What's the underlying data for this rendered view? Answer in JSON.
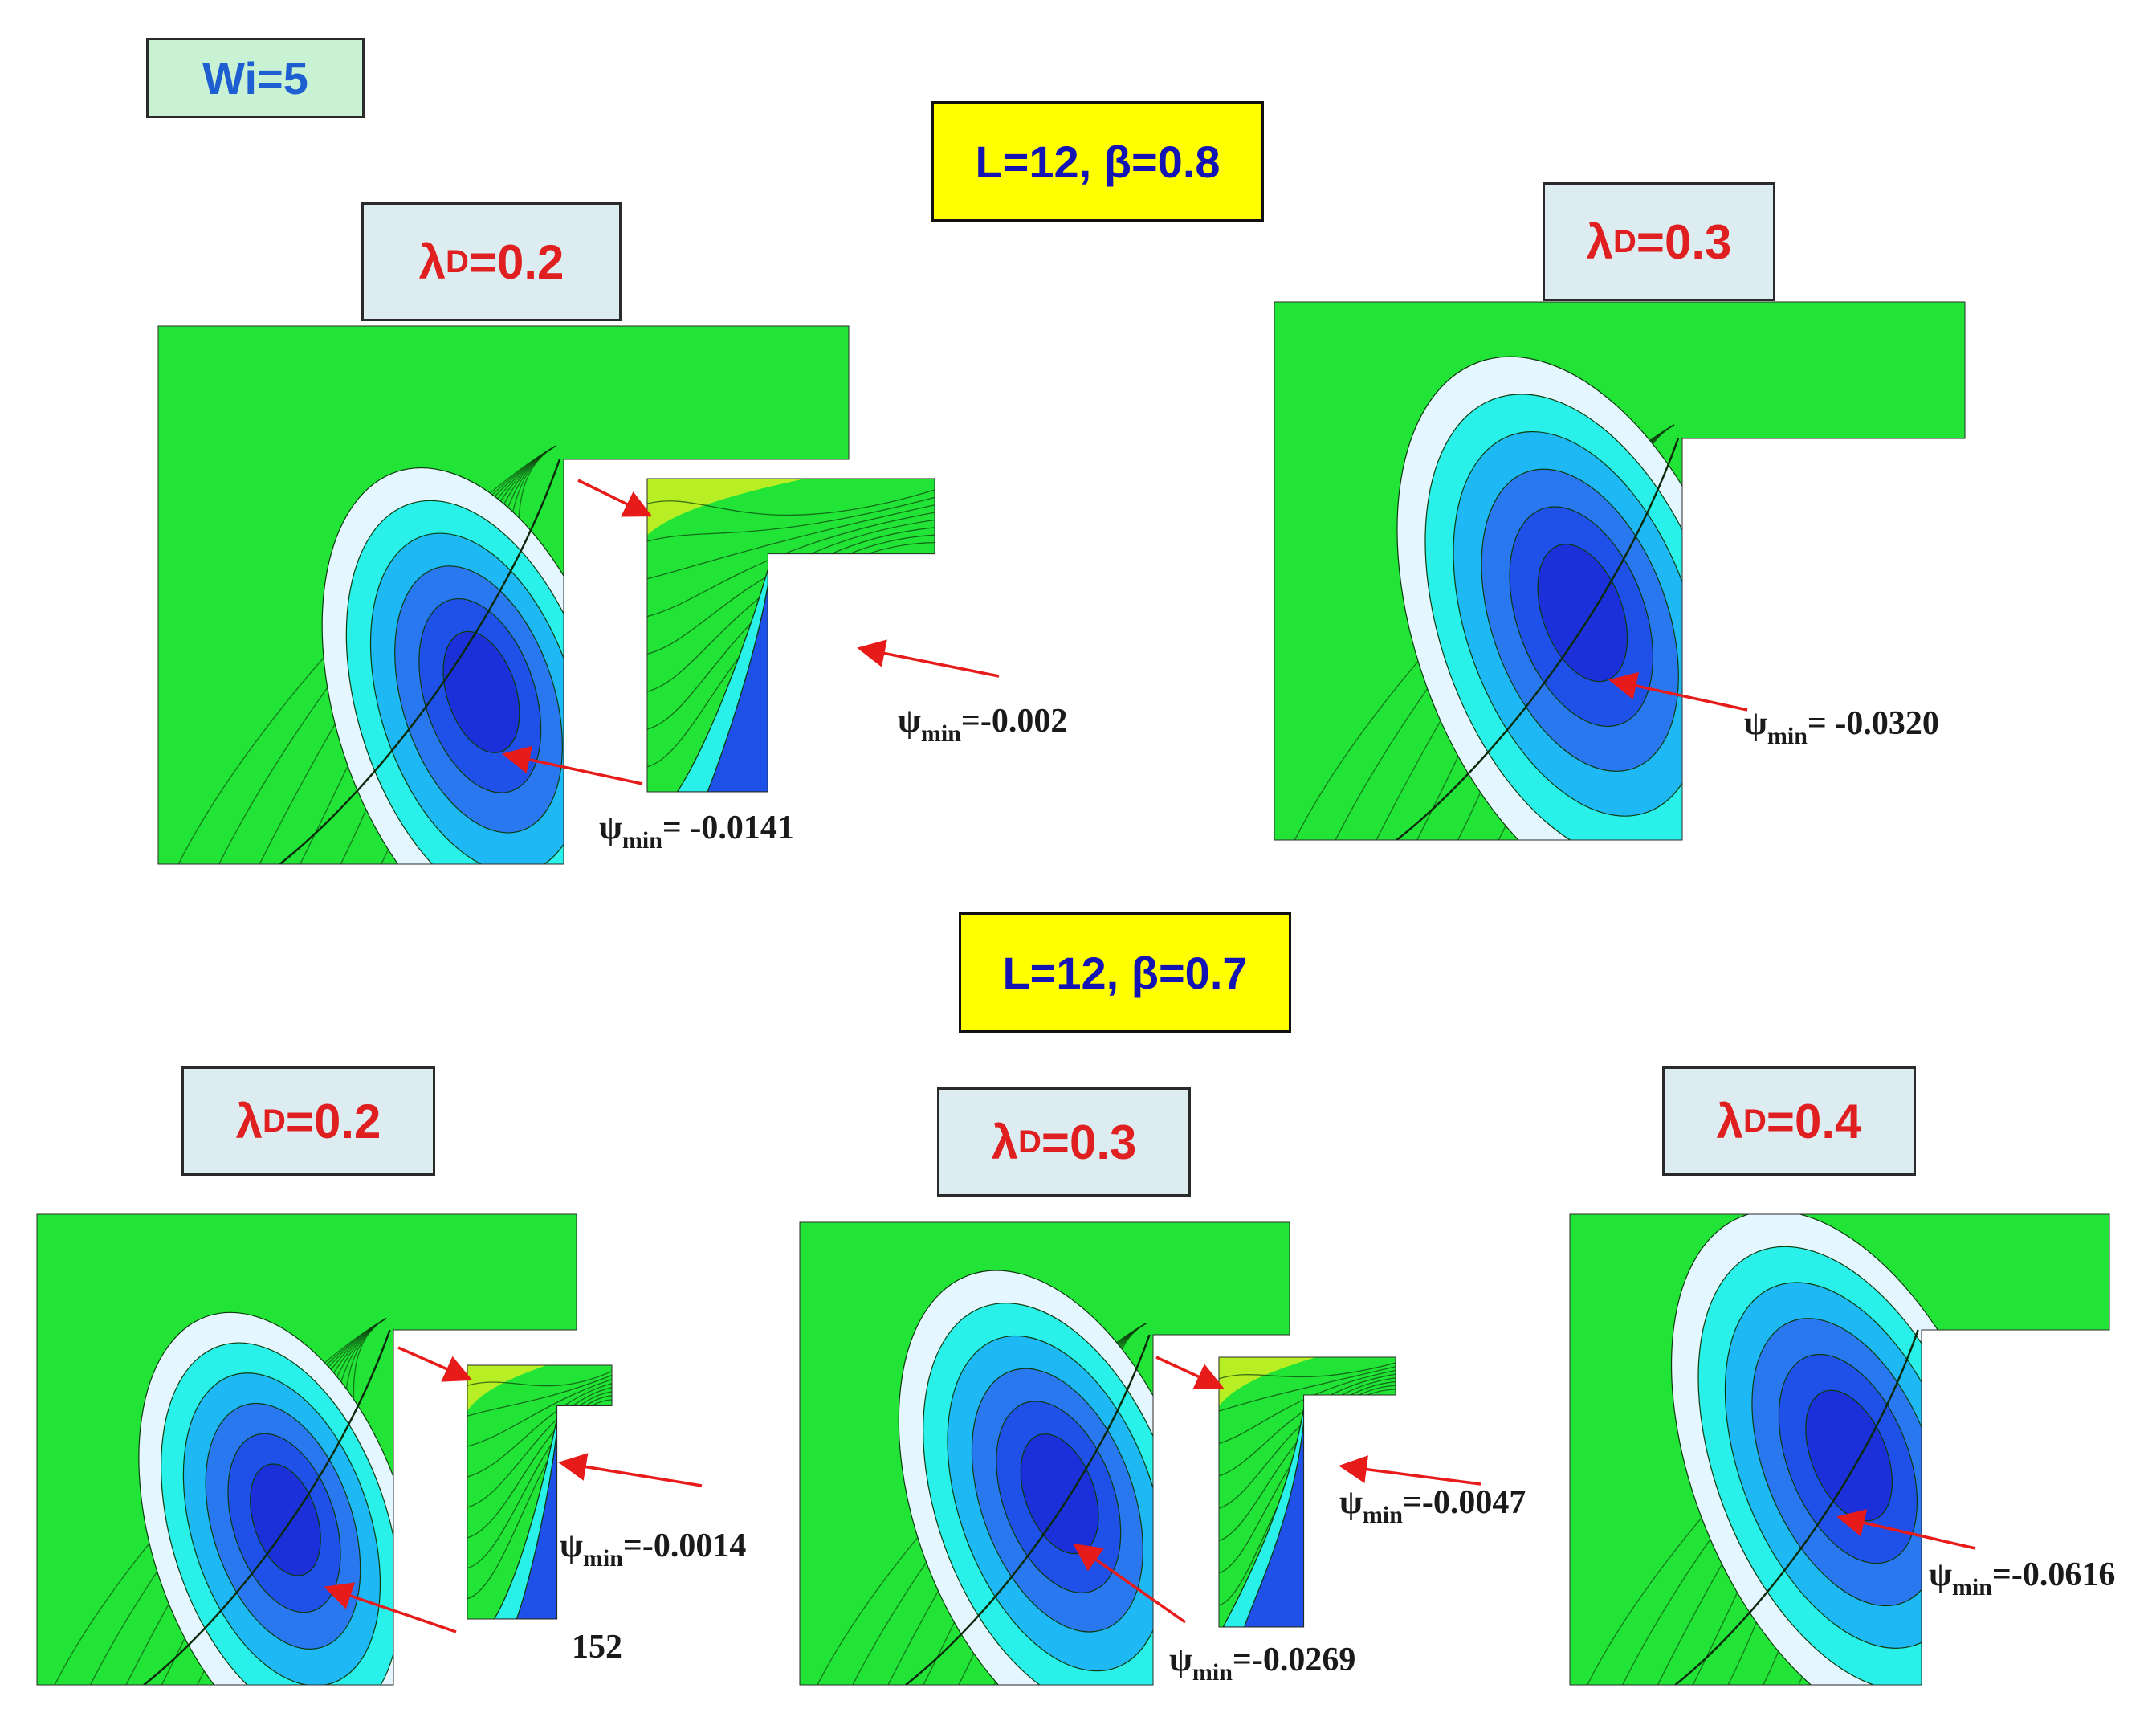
{
  "header": {
    "wi_label": "Wi=5"
  },
  "groups": [
    {
      "case_label": "L=12, β=0.8",
      "panels": [
        {
          "lambda_symbol": "λ",
          "lambda_sub": "D",
          "lambda_value": "=0.2",
          "psi_symbol": "ψ",
          "psi_sub": "min",
          "psi_value": "= -0.0141",
          "inset": {
            "psi_symbol": "ψ",
            "psi_sub": "min",
            "psi_value": "=-0.002"
          }
        },
        {
          "lambda_symbol": "λ",
          "lambda_sub": "D",
          "lambda_value": "=0.3",
          "psi_symbol": "ψ",
          "psi_sub": "min",
          "psi_value": "= -0.0320"
        }
      ]
    },
    {
      "case_label": "L=12, β=0.7",
      "panels": [
        {
          "lambda_symbol": "λ",
          "lambda_sub": "D",
          "lambda_value": "=0.2",
          "psi_symbol": "ψ",
          "psi_sub": "min",
          "psi_value": "=-0.0014",
          "extra_label": "152"
        },
        {
          "lambda_symbol": "λ",
          "lambda_sub": "D",
          "lambda_value": "=0.3",
          "psi_symbol": "ψ",
          "psi_sub": "min",
          "psi_value": "=-0.0269",
          "inset": {
            "psi_symbol": "ψ",
            "psi_sub": "min",
            "psi_value": "=-0.0047"
          }
        },
        {
          "lambda_symbol": "λ",
          "lambda_sub": "D",
          "lambda_value": "=0.4",
          "psi_symbol": "ψ",
          "psi_sub": "min",
          "psi_value": "=-0.0616"
        }
      ]
    }
  ],
  "colors": {
    "contour_scale": [
      "#e4f6ff",
      "#2af0ea",
      "#1eb8f4",
      "#2a78f0",
      "#1f50e8",
      "#1b30d8",
      "#22e436",
      "#52e82e",
      "#86ea2c",
      "#b8ee24",
      "#e0f020",
      "#ffe800",
      "#ffc800",
      "#ffa000",
      "#ff7a00",
      "#ff5000",
      "#ff2400",
      "#ff0000"
    ],
    "arrow": "#e81b1b",
    "contour_line": "#0c3a0c"
  }
}
